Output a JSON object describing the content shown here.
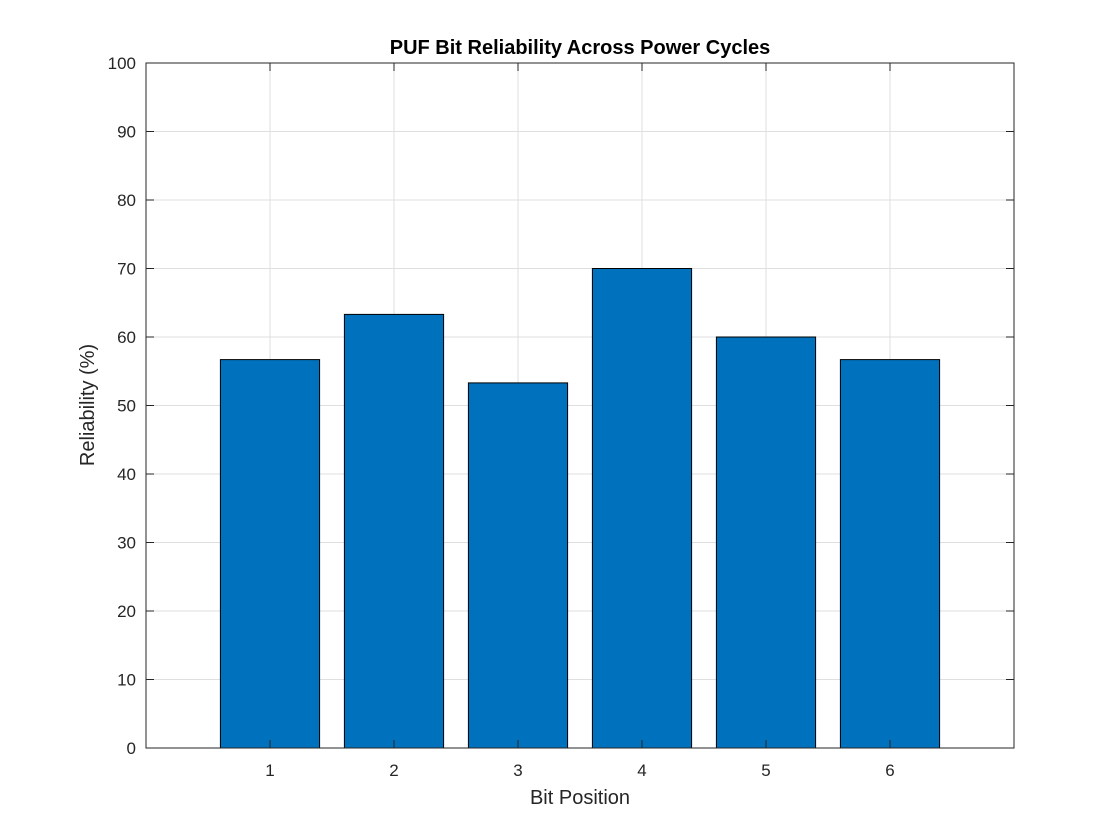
{
  "chart_data": {
    "type": "bar",
    "title": "PUF Bit Reliability Across Power Cycles",
    "xlabel": "Bit Position",
    "ylabel": "Reliability (%)",
    "categories": [
      "1",
      "2",
      "3",
      "4",
      "5",
      "6"
    ],
    "values": [
      56.7,
      63.3,
      53.3,
      70.0,
      60.0,
      56.7
    ],
    "xlim": [
      0,
      7
    ],
    "ylim": [
      0,
      100
    ],
    "yticks": [
      0,
      10,
      20,
      30,
      40,
      50,
      60,
      70,
      80,
      90,
      100
    ],
    "xticks": [
      1,
      2,
      3,
      4,
      5,
      6
    ],
    "grid": true,
    "bar_color": "#0072BD",
    "bar_edge_color": "#000000",
    "legend": "none"
  }
}
